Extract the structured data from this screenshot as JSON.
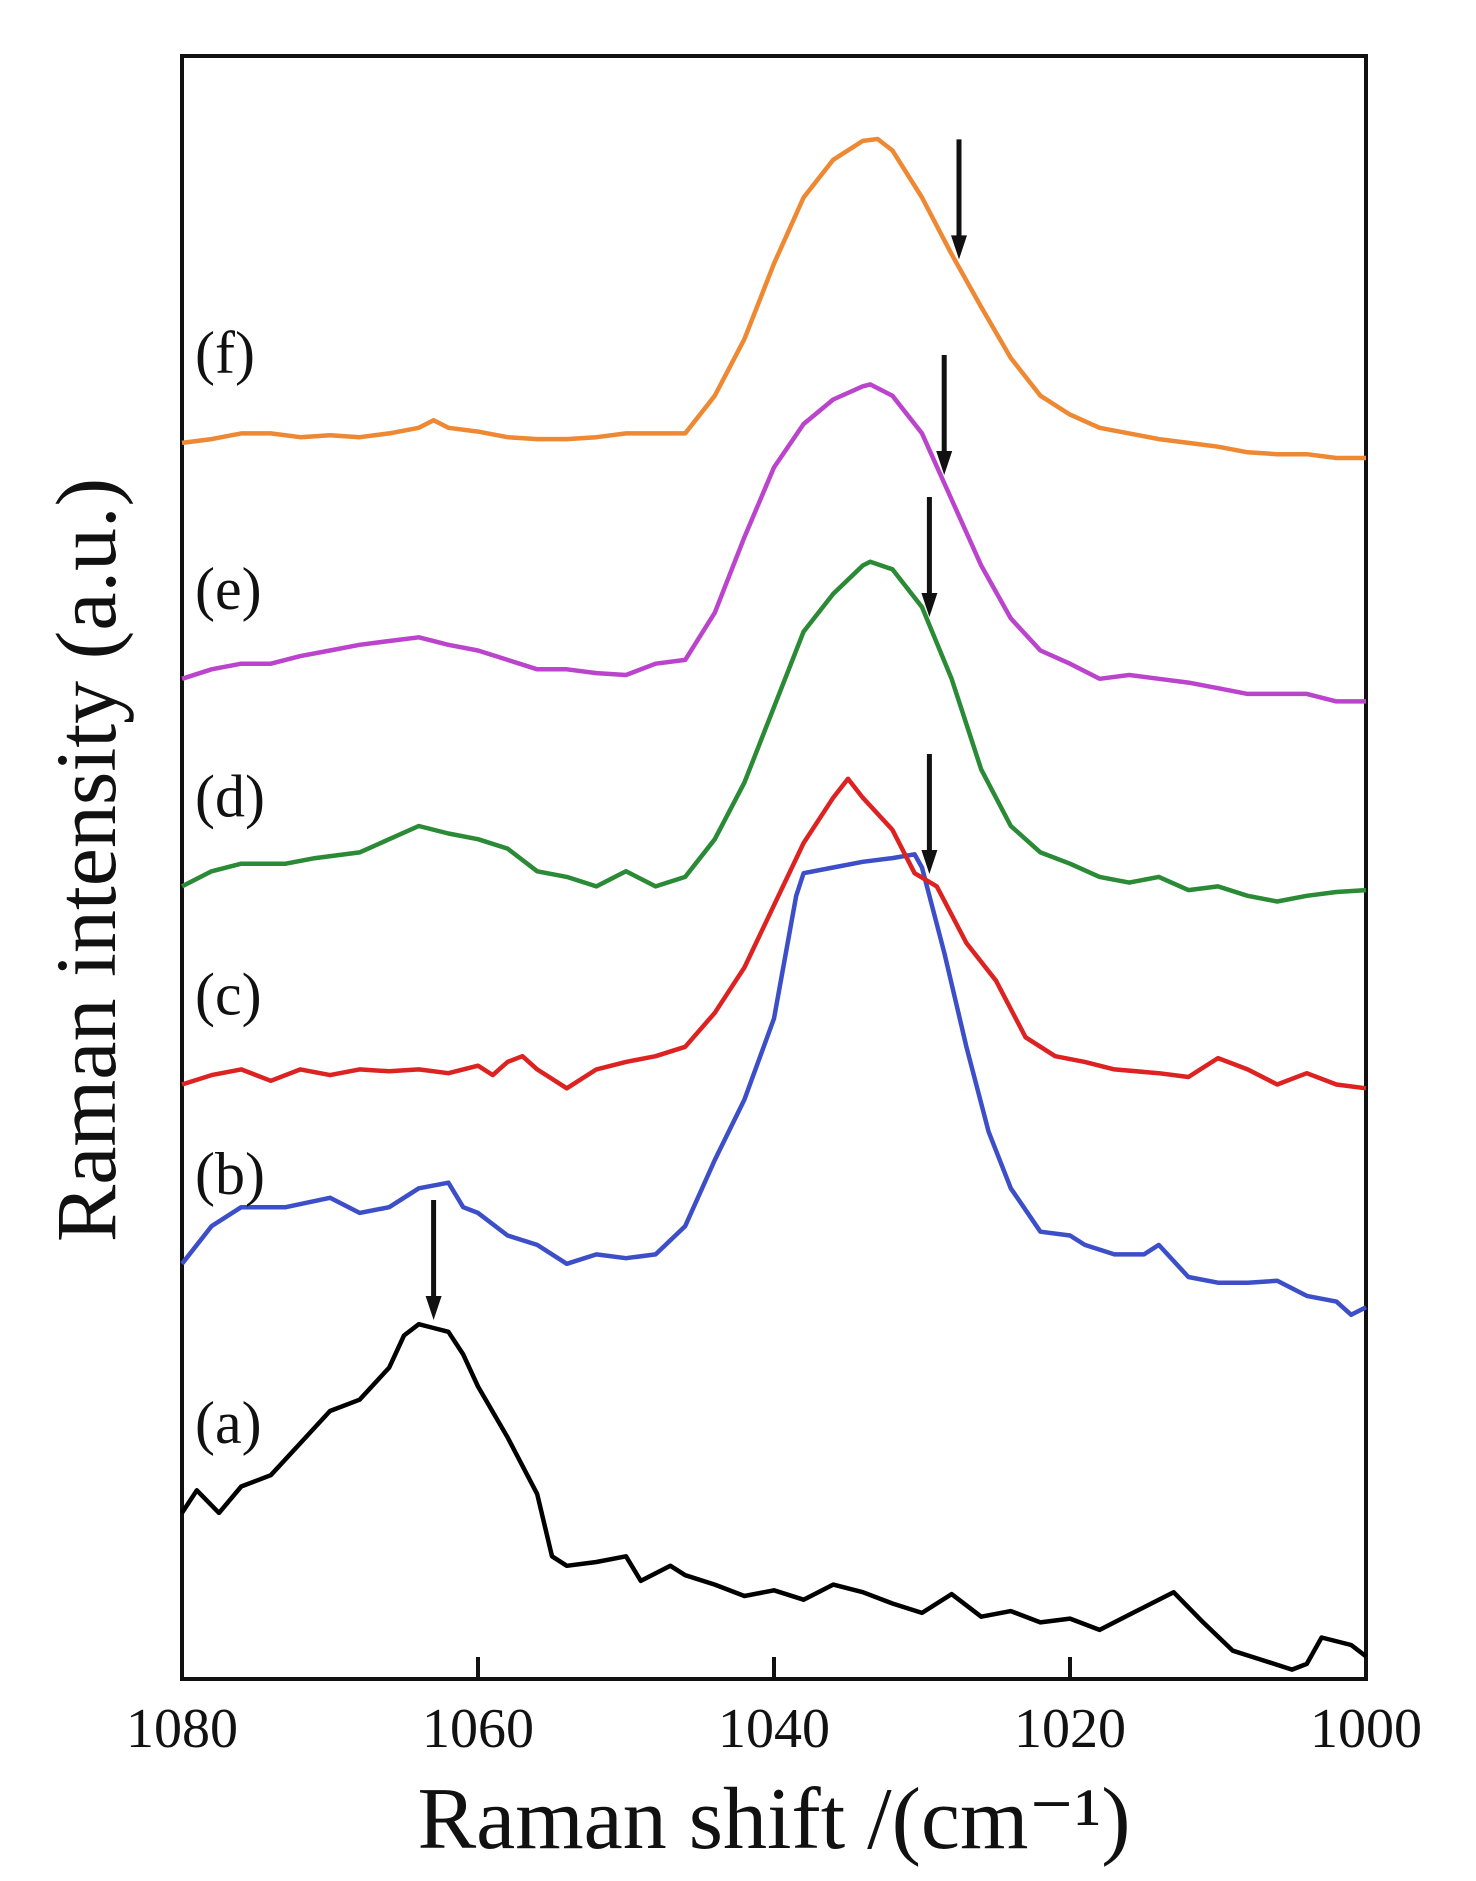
{
  "chart_data": {
    "type": "line",
    "title": "",
    "xlabel": "Raman shift /(cm⁻¹)",
    "ylabel": "Raman intensity (a.u.)",
    "xlim": [
      1080,
      1000
    ],
    "x_reversed": true,
    "ylim": [
      0,
      8.6
    ],
    "xticks": [
      1080,
      1060,
      1040,
      1020,
      1000
    ],
    "grid": false,
    "legend": "inline-left",
    "series": [
      {
        "name": "(a)",
        "color": "#000000",
        "offset": 0.0,
        "arrow_x": 1063,
        "points": [
          [
            1080,
            0.88
          ],
          [
            1079,
            1.0
          ],
          [
            1077.5,
            0.88
          ],
          [
            1076,
            1.02
          ],
          [
            1074,
            1.08
          ],
          [
            1072,
            1.25
          ],
          [
            1070,
            1.42
          ],
          [
            1068,
            1.48
          ],
          [
            1066,
            1.65
          ],
          [
            1065,
            1.82
          ],
          [
            1064,
            1.88
          ],
          [
            1063,
            1.86
          ],
          [
            1062,
            1.84
          ],
          [
            1061,
            1.72
          ],
          [
            1060,
            1.55
          ],
          [
            1058,
            1.28
          ],
          [
            1056,
            0.98
          ],
          [
            1055,
            0.65
          ],
          [
            1054,
            0.6
          ],
          [
            1052,
            0.62
          ],
          [
            1050,
            0.65
          ],
          [
            1049,
            0.52
          ],
          [
            1047,
            0.6
          ],
          [
            1046,
            0.55
          ],
          [
            1044,
            0.5
          ],
          [
            1042,
            0.44
          ],
          [
            1040,
            0.47
          ],
          [
            1038,
            0.42
          ],
          [
            1036,
            0.5
          ],
          [
            1034,
            0.46
          ],
          [
            1032,
            0.4
          ],
          [
            1030,
            0.35
          ],
          [
            1028,
            0.45
          ],
          [
            1026,
            0.33
          ],
          [
            1024,
            0.36
          ],
          [
            1022,
            0.3
          ],
          [
            1020,
            0.32
          ],
          [
            1018,
            0.26
          ],
          [
            1016,
            0.34
          ],
          [
            1013,
            0.46
          ],
          [
            1011,
            0.3
          ],
          [
            1009,
            0.15
          ],
          [
            1007,
            0.1
          ],
          [
            1005,
            0.05
          ],
          [
            1004,
            0.08
          ],
          [
            1003,
            0.22
          ],
          [
            1001,
            0.18
          ],
          [
            1000,
            0.12
          ]
        ]
      },
      {
        "name": "(b)",
        "color": "#3c4fc8",
        "offset": 1.45,
        "points": [
          [
            1080,
            0.75
          ],
          [
            1078,
            0.95
          ],
          [
            1076,
            1.05
          ],
          [
            1073,
            1.05
          ],
          [
            1070,
            1.1
          ],
          [
            1068,
            1.02
          ],
          [
            1066,
            1.05
          ],
          [
            1064,
            1.15
          ],
          [
            1062,
            1.18
          ],
          [
            1061,
            1.05
          ],
          [
            1060,
            1.02
          ],
          [
            1058,
            0.9
          ],
          [
            1056,
            0.85
          ],
          [
            1054,
            0.75
          ],
          [
            1052,
            0.8
          ],
          [
            1050,
            0.78
          ],
          [
            1048,
            0.8
          ],
          [
            1046,
            0.95
          ],
          [
            1044,
            1.3
          ],
          [
            1042,
            1.62
          ],
          [
            1040,
            2.05
          ],
          [
            1038.5,
            2.7
          ],
          [
            1038,
            2.82
          ],
          [
            1036,
            2.85
          ],
          [
            1034,
            2.88
          ],
          [
            1032,
            2.9
          ],
          [
            1030.5,
            2.92
          ],
          [
            1030,
            2.85
          ],
          [
            1028.5,
            2.4
          ],
          [
            1027,
            1.9
          ],
          [
            1025.5,
            1.45
          ],
          [
            1024,
            1.15
          ],
          [
            1022,
            0.92
          ],
          [
            1020,
            0.9
          ],
          [
            1019,
            0.85
          ],
          [
            1017,
            0.8
          ],
          [
            1015,
            0.8
          ],
          [
            1014,
            0.85
          ],
          [
            1012,
            0.68
          ],
          [
            1010,
            0.65
          ],
          [
            1008,
            0.65
          ],
          [
            1006,
            0.66
          ],
          [
            1004,
            0.58
          ],
          [
            1002,
            0.55
          ],
          [
            1001,
            0.48
          ],
          [
            1000,
            0.52
          ]
        ]
      },
      {
        "name": "(c)",
        "color": "#dd2222",
        "offset": 3.15,
        "points": [
          [
            1080,
            0.0
          ],
          [
            1078,
            0.05
          ],
          [
            1076,
            0.08
          ],
          [
            1074,
            0.02
          ],
          [
            1072,
            0.08
          ],
          [
            1070,
            0.05
          ],
          [
            1068,
            0.08
          ],
          [
            1066,
            0.07
          ],
          [
            1064,
            0.08
          ],
          [
            1062,
            0.06
          ],
          [
            1060,
            0.1
          ],
          [
            1059,
            0.05
          ],
          [
            1058,
            0.12
          ],
          [
            1057,
            0.15
          ],
          [
            1056,
            0.08
          ],
          [
            1054,
            -0.02
          ],
          [
            1052,
            0.08
          ],
          [
            1050,
            0.12
          ],
          [
            1048,
            0.15
          ],
          [
            1046,
            0.2
          ],
          [
            1044,
            0.38
          ],
          [
            1042,
            0.62
          ],
          [
            1040,
            0.95
          ],
          [
            1038,
            1.28
          ],
          [
            1036,
            1.52
          ],
          [
            1035,
            1.62
          ],
          [
            1034,
            1.52
          ],
          [
            1032,
            1.35
          ],
          [
            1030.5,
            1.12
          ],
          [
            1029,
            1.05
          ],
          [
            1027,
            0.75
          ],
          [
            1025,
            0.55
          ],
          [
            1023,
            0.25
          ],
          [
            1021,
            0.15
          ],
          [
            1019,
            0.12
          ],
          [
            1017,
            0.08
          ],
          [
            1014,
            0.06
          ],
          [
            1012,
            0.04
          ],
          [
            1010,
            0.14
          ],
          [
            1008,
            0.08
          ],
          [
            1006,
            0.0
          ],
          [
            1004,
            0.06
          ],
          [
            1002,
            0.0
          ],
          [
            1000,
            -0.02
          ]
        ]
      },
      {
        "name": "(d)",
        "color": "#2a8a35",
        "offset": 4.2,
        "points": [
          [
            1080,
            0.0
          ],
          [
            1078,
            0.08
          ],
          [
            1076,
            0.12
          ],
          [
            1073,
            0.12
          ],
          [
            1071,
            0.15
          ],
          [
            1068,
            0.18
          ],
          [
            1066,
            0.25
          ],
          [
            1064,
            0.32
          ],
          [
            1062,
            0.28
          ],
          [
            1060,
            0.25
          ],
          [
            1058,
            0.2
          ],
          [
            1056,
            0.08
          ],
          [
            1054,
            0.05
          ],
          [
            1052,
            0.0
          ],
          [
            1050,
            0.08
          ],
          [
            1048,
            0.0
          ],
          [
            1046,
            0.05
          ],
          [
            1044,
            0.25
          ],
          [
            1042,
            0.55
          ],
          [
            1040,
            0.95
          ],
          [
            1038,
            1.35
          ],
          [
            1036,
            1.55
          ],
          [
            1034,
            1.7
          ],
          [
            1033.5,
            1.72
          ],
          [
            1032,
            1.68
          ],
          [
            1030,
            1.48
          ],
          [
            1028,
            1.1
          ],
          [
            1026,
            0.62
          ],
          [
            1024,
            0.32
          ],
          [
            1022,
            0.18
          ],
          [
            1020,
            0.12
          ],
          [
            1018,
            0.05
          ],
          [
            1016,
            0.02
          ],
          [
            1014,
            0.05
          ],
          [
            1012,
            -0.02
          ],
          [
            1010,
            0.0
          ],
          [
            1008,
            -0.05
          ],
          [
            1006,
            -0.08
          ],
          [
            1004,
            -0.05
          ],
          [
            1002,
            -0.03
          ],
          [
            1000,
            -0.02
          ]
        ]
      },
      {
        "name": "(e)",
        "color": "#bb44cc",
        "offset": 5.3,
        "points": [
          [
            1080,
            0.0
          ],
          [
            1078,
            0.05
          ],
          [
            1076,
            0.08
          ],
          [
            1074,
            0.08
          ],
          [
            1072,
            0.12
          ],
          [
            1070,
            0.15
          ],
          [
            1068,
            0.18
          ],
          [
            1066,
            0.2
          ],
          [
            1064,
            0.22
          ],
          [
            1062,
            0.18
          ],
          [
            1060,
            0.15
          ],
          [
            1058,
            0.1
          ],
          [
            1056,
            0.05
          ],
          [
            1054,
            0.05
          ],
          [
            1052,
            0.03
          ],
          [
            1050,
            0.02
          ],
          [
            1048,
            0.08
          ],
          [
            1046,
            0.1
          ],
          [
            1044,
            0.35
          ],
          [
            1042,
            0.75
          ],
          [
            1040,
            1.12
          ],
          [
            1038,
            1.35
          ],
          [
            1036,
            1.48
          ],
          [
            1034,
            1.55
          ],
          [
            1033.5,
            1.56
          ],
          [
            1032,
            1.5
          ],
          [
            1030,
            1.3
          ],
          [
            1028,
            0.95
          ],
          [
            1026,
            0.6
          ],
          [
            1024,
            0.32
          ],
          [
            1022,
            0.15
          ],
          [
            1020,
            0.08
          ],
          [
            1018,
            0.0
          ],
          [
            1016,
            0.02
          ],
          [
            1014,
            0.0
          ],
          [
            1012,
            -0.02
          ],
          [
            1010,
            -0.05
          ],
          [
            1008,
            -0.08
          ],
          [
            1006,
            -0.08
          ],
          [
            1004,
            -0.08
          ],
          [
            1002,
            -0.12
          ],
          [
            1000,
            -0.12
          ]
        ]
      },
      {
        "name": "(f)",
        "color": "#ee8833",
        "offset": 6.55,
        "points": [
          [
            1080,
            0.0
          ],
          [
            1078,
            0.02
          ],
          [
            1076,
            0.05
          ],
          [
            1074,
            0.05
          ],
          [
            1072,
            0.03
          ],
          [
            1070,
            0.04
          ],
          [
            1068,
            0.03
          ],
          [
            1066,
            0.05
          ],
          [
            1064,
            0.08
          ],
          [
            1063,
            0.12
          ],
          [
            1062,
            0.08
          ],
          [
            1060,
            0.06
          ],
          [
            1058,
            0.03
          ],
          [
            1056,
            0.02
          ],
          [
            1054,
            0.02
          ],
          [
            1052,
            0.03
          ],
          [
            1050,
            0.05
          ],
          [
            1048,
            0.05
          ],
          [
            1046,
            0.05
          ],
          [
            1044,
            0.25
          ],
          [
            1042,
            0.55
          ],
          [
            1040,
            0.95
          ],
          [
            1038,
            1.3
          ],
          [
            1036,
            1.5
          ],
          [
            1034,
            1.6
          ],
          [
            1033,
            1.61
          ],
          [
            1032,
            1.55
          ],
          [
            1030,
            1.3
          ],
          [
            1028,
            1.0
          ],
          [
            1026,
            0.72
          ],
          [
            1024,
            0.45
          ],
          [
            1022,
            0.25
          ],
          [
            1020,
            0.15
          ],
          [
            1018,
            0.08
          ],
          [
            1016,
            0.05
          ],
          [
            1014,
            0.02
          ],
          [
            1012,
            0.0
          ],
          [
            1010,
            -0.02
          ],
          [
            1008,
            -0.05
          ],
          [
            1006,
            -0.06
          ],
          [
            1004,
            -0.06
          ],
          [
            1002,
            -0.08
          ],
          [
            1000,
            -0.08
          ]
        ]
      }
    ],
    "arrows": [
      {
        "series": "(a)",
        "x": 1063
      },
      {
        "series": "(c)",
        "x": 1029.5
      },
      {
        "series": "(d)",
        "x": 1029.5
      },
      {
        "series": "(e)",
        "x": 1028.5
      },
      {
        "series": "(f)",
        "x": 1027.5
      }
    ]
  }
}
